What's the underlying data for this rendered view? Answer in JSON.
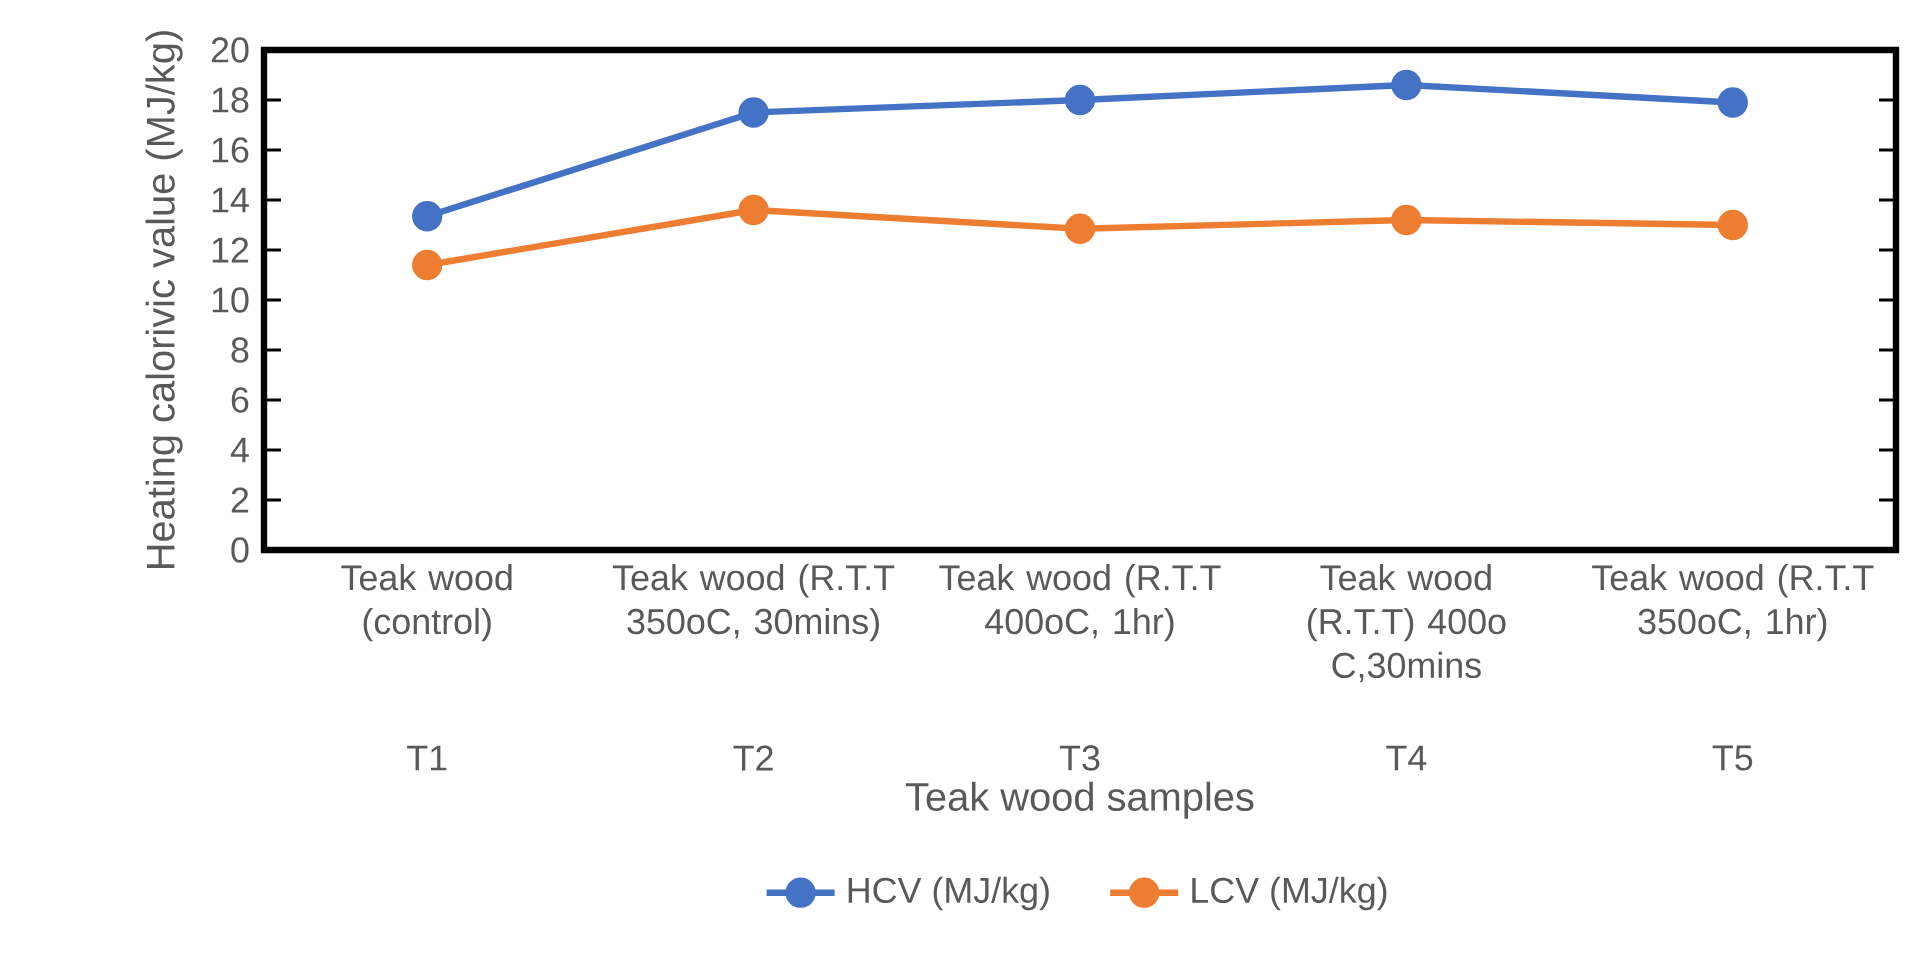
{
  "chart_data": {
    "type": "line",
    "categories": [
      "Teak wood (control)",
      "Teak wood (R.T.T 350oC, 30mins)",
      "Teak wood (R.T.T 400oC, 1hr)",
      "Teak wood (R.T.T) 400o C,30mins",
      "Teak wood (R.T.T 350oC, 1hr)"
    ],
    "annotations": [
      "T1",
      "T2",
      "T3",
      "T4",
      "T5"
    ],
    "xlabel": "Teak wood samples",
    "ylabel": "Heating calorivic value (MJ/kg)",
    "ylim": [
      0,
      20
    ],
    "yticks": [
      0,
      2,
      4,
      6,
      8,
      10,
      12,
      14,
      16,
      18,
      20
    ],
    "series": [
      {
        "name": "HCV (MJ/kg)",
        "color": "#4472c4",
        "values": [
          13.35,
          17.5,
          18.0,
          18.6,
          17.9
        ]
      },
      {
        "name": "LCV (MJ/kg)",
        "color": "#ed7d31",
        "values": [
          11.4,
          13.6,
          12.85,
          13.2,
          13.0
        ]
      }
    ],
    "marker": "circle",
    "line_style": "solid",
    "legend": "bottom",
    "grid": false
  }
}
